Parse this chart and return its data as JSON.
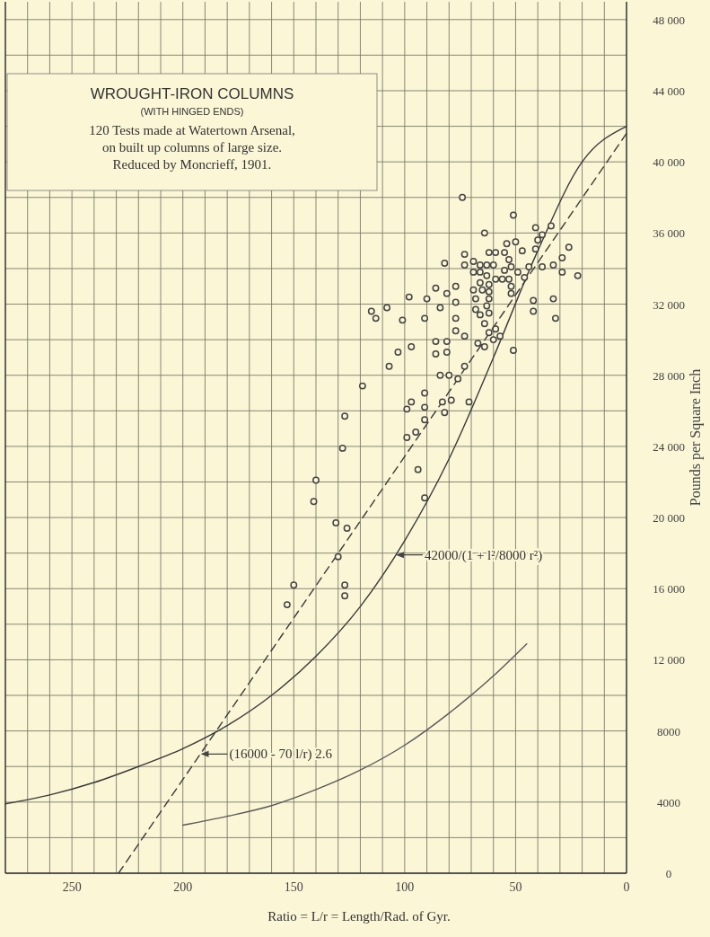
{
  "chart_data": {
    "type": "scatter",
    "title": "WROUGHT-IRON COLUMNS",
    "subtitle": "(WITH HINGED ENDS)",
    "xlabel": "Ratio = L/r = Length/Rad. of Gyr.",
    "ylabel": "Pounds per Square Inch",
    "annotations": [
      "120 Tests made at Watertown Arsenal,",
      "on built up columns of large size.",
      "Reduced by Moncrieff, 1901.",
      {
        "text": "42000/(1 + l²/8000 r²)",
        "x": 104,
        "y": 17900
      },
      {
        "text": "(16000 - 70 l/r) 2.6",
        "x": 192,
        "y": 6700
      }
    ],
    "xlim": [
      280,
      0
    ],
    "ylim": [
      0,
      49000
    ],
    "grid": true,
    "xticks": [
      0,
      {
        "value": 10,
        "label": null
      },
      {
        "value": 20,
        "label": null
      },
      {
        "value": 30,
        "label": null
      },
      {
        "value": 40,
        "label": null
      },
      50,
      {
        "value": 60,
        "label": null
      },
      {
        "value": 70,
        "label": null
      },
      {
        "value": 80,
        "label": null
      },
      {
        "value": 90,
        "label": null
      },
      100,
      {
        "value": 110,
        "label": null
      },
      {
        "value": 120,
        "label": null
      },
      {
        "value": 130,
        "label": null
      },
      {
        "value": 140,
        "label": null
      },
      150,
      {
        "value": 160,
        "label": null
      },
      {
        "value": 170,
        "label": null
      },
      {
        "value": 180,
        "label": null
      },
      {
        "value": 190,
        "label": null
      },
      200,
      {
        "value": 210,
        "label": null
      },
      {
        "value": 220,
        "label": null
      },
      {
        "value": 230,
        "label": null
      },
      {
        "value": 240,
        "label": null
      },
      250,
      {
        "value": 260,
        "label": null
      },
      {
        "value": 270,
        "label": null
      }
    ],
    "yticks": [
      0,
      {
        "value": 2000,
        "label": null
      },
      4000,
      {
        "value": 6000,
        "label": null
      },
      8000,
      {
        "value": 10000,
        "label": null
      },
      {
        "value": 12000,
        "label": "12 000"
      },
      {
        "value": 14000,
        "label": null
      },
      {
        "value": 16000,
        "label": "16 000"
      },
      {
        "value": 18000,
        "label": null
      },
      {
        "value": 20000,
        "label": "20 000"
      },
      {
        "value": 22000,
        "label": null
      },
      {
        "value": 24000,
        "label": "24 000"
      },
      {
        "value": 26000,
        "label": null
      },
      {
        "value": 28000,
        "label": "28 000"
      },
      {
        "value": 30000,
        "label": null
      },
      {
        "value": 32000,
        "label": "32 000"
      },
      {
        "value": 34000,
        "label": null
      },
      {
        "value": 36000,
        "label": "36 000"
      },
      {
        "value": 38000,
        "label": null
      },
      {
        "value": 40000,
        "label": "40 000"
      },
      {
        "value": 42000,
        "label": null
      },
      {
        "value": 44000,
        "label": "44 000"
      },
      {
        "value": 46000,
        "label": null
      },
      {
        "value": 48000,
        "label": "48 000"
      }
    ],
    "series": [
      {
        "type": "line",
        "color": "#3a3a3a",
        "line_style": "solid",
        "marker": "none",
        "x": [
          280,
          260,
          240,
          220,
          200,
          180,
          160,
          140,
          120,
          100,
          80,
          60,
          40,
          20,
          0
        ],
        "values": [
          3900,
          4400,
          5100,
          6000,
          7000,
          8300,
          10000,
          12200,
          15000,
          18700,
          23300,
          29000,
          35000,
          40000,
          42000
        ]
      },
      {
        "type": "line",
        "color": "#3a3a3a",
        "line_style": "dashed",
        "marker": "none",
        "x": [
          229,
          0
        ],
        "values": [
          0,
          41600
        ]
      },
      {
        "type": "line",
        "color": "#5a5a5a",
        "line_style": "solid",
        "marker": "none",
        "x": [
          200,
          180,
          160,
          140,
          120,
          100,
          80,
          60,
          45
        ],
        "values": [
          2700,
          3200,
          3800,
          4700,
          5800,
          7200,
          9000,
          11100,
          12900
        ]
      },
      {
        "color": "#444444",
        "marker": "circle",
        "x": [
          74,
          73,
          82,
          73,
          69,
          66,
          69,
          66,
          77,
          86,
          81,
          98,
          90,
          68,
          77,
          84,
          108,
          115,
          113,
          101,
          91,
          77,
          68,
          66,
          77,
          73,
          86,
          81,
          86,
          81,
          97,
          103,
          107,
          84,
          80,
          73,
          67,
          76,
          119,
          91,
          97,
          91,
          99,
          83,
          79,
          71,
          82,
          91,
          127,
          51,
          64,
          41,
          34,
          38,
          40,
          50,
          54,
          26,
          41,
          47,
          55,
          59,
          62,
          53,
          29,
          63,
          60,
          52,
          44,
          38,
          33,
          66,
          55,
          49,
          63,
          59,
          56,
          53,
          46,
          29,
          22,
          62,
          52,
          69,
          65,
          62,
          52,
          62,
          42,
          33,
          63,
          62,
          42,
          32,
          64,
          59,
          62,
          57,
          60,
          64,
          51,
          128,
          140,
          141,
          131,
          126,
          130,
          150,
          127,
          127,
          153,
          99,
          95,
          94,
          91
        ],
        "values": [
          38000,
          34800,
          34300,
          34200,
          34400,
          34200,
          33800,
          33200,
          33000,
          32900,
          32600,
          32400,
          32300,
          32300,
          32100,
          31800,
          31800,
          31600,
          31200,
          31100,
          31200,
          31200,
          31700,
          31400,
          30500,
          30200,
          29900,
          29900,
          29200,
          29300,
          29600,
          29300,
          28500,
          28000,
          28000,
          28500,
          29800,
          27800,
          27400,
          27000,
          26500,
          26200,
          26100,
          26500,
          26600,
          26500,
          25900,
          25500,
          25700,
          37000,
          36000,
          36300,
          36400,
          35900,
          35600,
          35500,
          35400,
          35200,
          35100,
          35000,
          34900,
          34900,
          34900,
          34500,
          34600,
          34200,
          34200,
          34100,
          34100,
          34100,
          34200,
          33800,
          33900,
          33800,
          33600,
          33400,
          33400,
          33400,
          33500,
          33800,
          33600,
          33100,
          33000,
          32800,
          32800,
          32700,
          32600,
          32300,
          32200,
          32300,
          31900,
          31500,
          31600,
          31200,
          30900,
          30600,
          30400,
          30200,
          30000,
          29600,
          29400,
          23900,
          22100,
          20900,
          19700,
          19400,
          17800,
          16200,
          16200,
          15600,
          15100,
          24500,
          24800,
          22700,
          21100
        ]
      }
    ]
  }
}
